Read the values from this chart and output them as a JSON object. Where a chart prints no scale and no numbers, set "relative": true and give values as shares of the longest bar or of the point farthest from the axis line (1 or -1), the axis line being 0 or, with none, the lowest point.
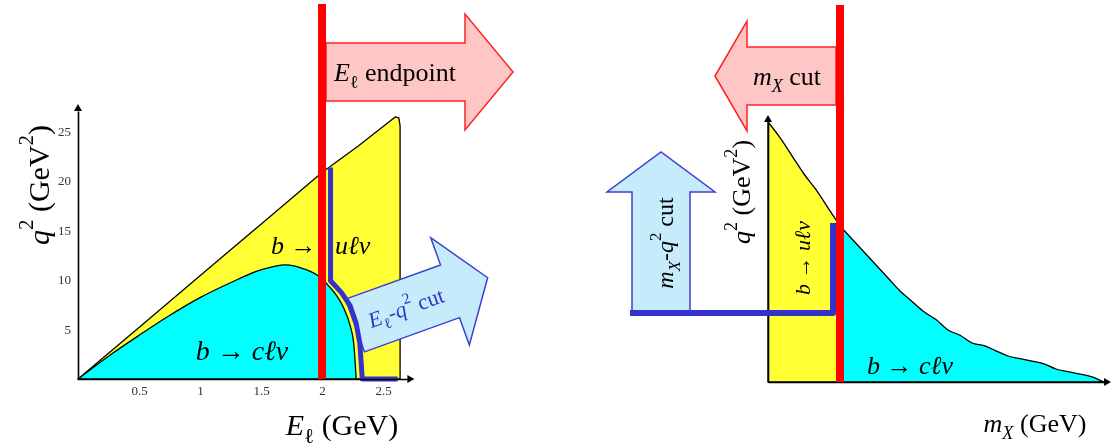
{
  "chart_data": [
    {
      "type": "area",
      "xlabel": "E$_{ℓ}$ (GeV)",
      "ylabel": "q$^{2}$ (GeV$^{2}$)",
      "xlim": [
        0,
        2.7
      ],
      "ylim": [
        0,
        27
      ],
      "xticks": [
        0.5,
        1,
        1.5,
        2,
        2.5
      ],
      "yticks": [
        5,
        10,
        15,
        20,
        25
      ],
      "series": [
        {
          "name": "b → uℓν",
          "color": "#ffff33",
          "x": [
            0,
            0.5,
            1,
            1.5,
            2,
            2.3,
            2.6,
            2.63,
            2.64,
            2.64
          ],
          "values": [
            0,
            5.2,
            10.4,
            15.6,
            20.8,
            23.5,
            26.4,
            26.3,
            25.5,
            0
          ]
        },
        {
          "name": "b → cℓν",
          "color": "#00ffff",
          "x": [
            0,
            0.25,
            0.5,
            0.75,
            1,
            1.25,
            1.5,
            1.7,
            1.85,
            2,
            2.06,
            2.12,
            2.18,
            2.23,
            2.26,
            2.28
          ],
          "values": [
            0,
            2.3,
            4.4,
            6.4,
            8.2,
            9.7,
            11,
            11.5,
            11.1,
            10.1,
            9.3,
            8.4,
            7.1,
            5.4,
            3.6,
            0
          ]
        },
        {
          "type": "line",
          "name": "E$_{ℓ}$-q$^{2}$ cut",
          "color": "#3333cc",
          "x": [
            2.07,
            2.07,
            2.16,
            2.23,
            2.28,
            2.31,
            2.33,
            2.62
          ],
          "values": [
            21.3,
            9.9,
            8.7,
            7.4,
            5.6,
            3.6,
            0,
            0
          ]
        }
      ],
      "ref_lines": [
        {
          "axis": "x",
          "value": 2,
          "label": "E$_{ℓ}$ endpoint",
          "color": "#ff0000"
        }
      ]
    },
    {
      "type": "area",
      "relative": true,
      "xlabel": "m$_{X}$ (GeV)",
      "ylabel": "q$^{2}$ (GeV$^{2}$)",
      "categories": [
        null,
        null,
        null,
        null,
        null,
        null,
        null,
        null,
        null,
        null,
        null,
        null,
        null,
        null,
        null,
        null,
        null,
        null,
        null,
        null,
        null,
        null,
        null,
        null,
        null,
        null,
        null,
        null,
        null
      ],
      "series": [
        {
          "name": "b → uℓν",
          "color": "#ffff33",
          "values": [
            1,
            0.94,
            0.87,
            0.8,
            0.74,
            0.67,
            0.6,
            null,
            null,
            null,
            null,
            null,
            null,
            null,
            null,
            null,
            null,
            null,
            null,
            null,
            null,
            null,
            null,
            null,
            null,
            null,
            null,
            null,
            null
          ]
        },
        {
          "name": "b → cℓν",
          "color": "#00ffff",
          "values": [
            null,
            null,
            null,
            null,
            null,
            null,
            0.6,
            0.55,
            0.5,
            0.45,
            0.4,
            0.35,
            0.31,
            0.27,
            0.24,
            0.2,
            0.18,
            0.15,
            0.14,
            0.12,
            0.1,
            0.09,
            0.08,
            0.07,
            0.05,
            0.04,
            0.03,
            0.02,
            0
          ]
        }
      ],
      "annotations": [
        "m$_{X}$ cut",
        "m$_{X}$-q$^{2}$ cut"
      ]
    }
  ]
}
